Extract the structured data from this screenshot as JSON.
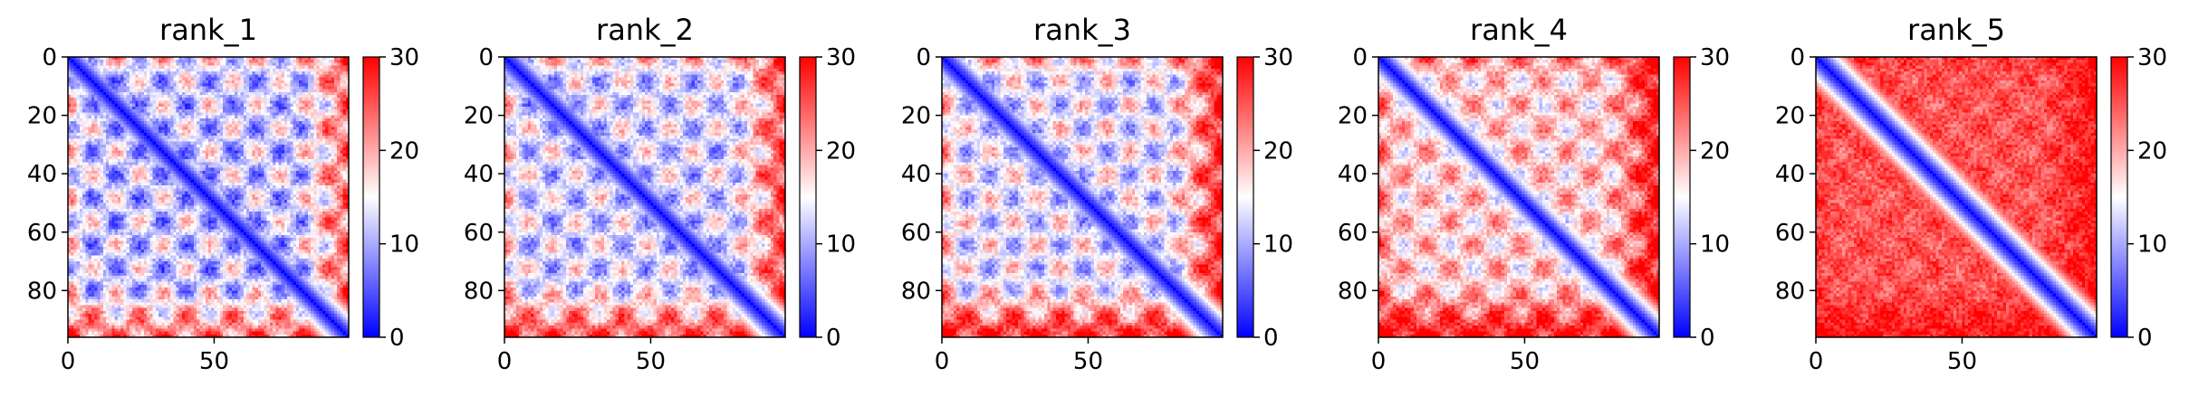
{
  "chart_data": [
    {
      "type": "heatmap",
      "title": "rank_1",
      "n": 96,
      "xticks": [
        "0",
        "50"
      ],
      "yticks": [
        "0",
        "20",
        "40",
        "60",
        "80"
      ],
      "colorbar": {
        "ticks": [
          "0",
          "10",
          "20",
          "30"
        ],
        "range": [
          0,
          30
        ],
        "cmap": "bwr"
      },
      "pattern": {
        "offdiag_level": 12,
        "period": 16,
        "amplitude": 8,
        "edge_boost": 8,
        "diag_width": 2.2
      }
    },
    {
      "type": "heatmap",
      "title": "rank_2",
      "n": 96,
      "xticks": [
        "0",
        "50"
      ],
      "yticks": [
        "0",
        "20",
        "40",
        "60",
        "80"
      ],
      "colorbar": {
        "ticks": [
          "0",
          "10",
          "20",
          "30"
        ],
        "range": [
          0,
          30
        ],
        "cmap": "bwr"
      },
      "pattern": {
        "offdiag_level": 13,
        "period": 16,
        "amplitude": 7,
        "edge_boost": 9,
        "diag_width": 2.5
      }
    },
    {
      "type": "heatmap",
      "title": "rank_3",
      "n": 96,
      "xticks": [
        "0",
        "50"
      ],
      "yticks": [
        "0",
        "20",
        "40",
        "60",
        "80"
      ],
      "colorbar": {
        "ticks": [
          "0",
          "10",
          "20",
          "30"
        ],
        "range": [
          0,
          30
        ],
        "cmap": "bwr"
      },
      "pattern": {
        "offdiag_level": 14,
        "period": 16,
        "amplitude": 7,
        "edge_boost": 10,
        "diag_width": 2.5
      }
    },
    {
      "type": "heatmap",
      "title": "rank_4",
      "n": 96,
      "xticks": [
        "0",
        "50"
      ],
      "yticks": [
        "0",
        "20",
        "40",
        "60",
        "80"
      ],
      "colorbar": {
        "ticks": [
          "0",
          "10",
          "20",
          "30"
        ],
        "range": [
          0,
          30
        ],
        "cmap": "bwr"
      },
      "pattern": {
        "offdiag_level": 18,
        "period": 16,
        "amplitude": 6,
        "edge_boost": 8,
        "diag_width": 2.0
      }
    },
    {
      "type": "heatmap",
      "title": "rank_5",
      "n": 96,
      "xticks": [
        "0",
        "50"
      ],
      "yticks": [
        "0",
        "20",
        "40",
        "60",
        "80"
      ],
      "colorbar": {
        "ticks": [
          "0",
          "10",
          "20",
          "30"
        ],
        "range": [
          0,
          30
        ],
        "cmap": "bwr"
      },
      "pattern": {
        "offdiag_level": 25,
        "period": 16,
        "amplitude": 2,
        "edge_boost": 3,
        "diag_width": 2.3
      }
    }
  ]
}
